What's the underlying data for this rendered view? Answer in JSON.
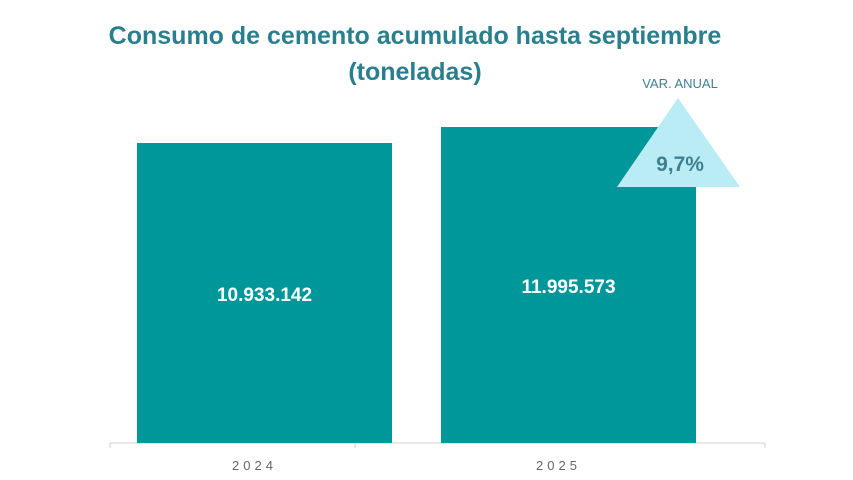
{
  "chart_data": {
    "type": "bar",
    "title": "Consumo de cemento acumulado hasta septiembre",
    "subtitle": "(toneladas)",
    "categories": [
      "2024",
      "2025"
    ],
    "values": [
      10933142,
      11995573
    ],
    "data_labels": [
      "10.933.142",
      "11.995.573"
    ],
    "bar_color": "#00979a",
    "grid": false,
    "annotation": {
      "label": "VAR. ANUAL",
      "value": "9,7%",
      "shape": "triangle-up",
      "color": "#b9ecf4",
      "text_color": "#3f7f90"
    }
  }
}
